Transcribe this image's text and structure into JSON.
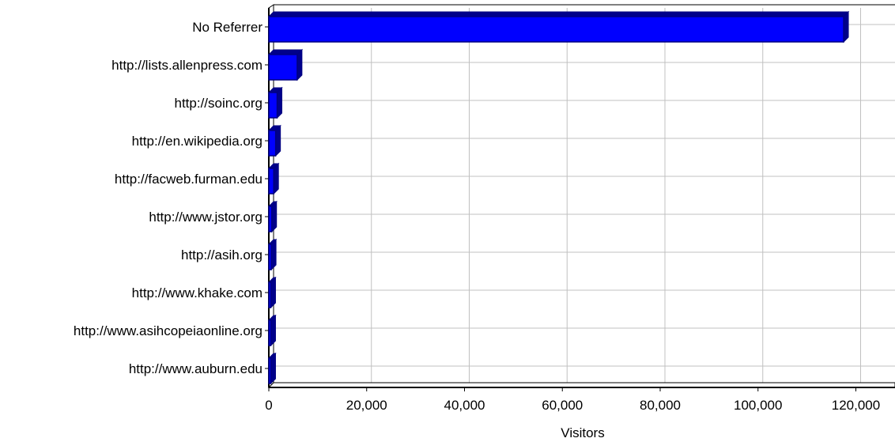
{
  "chart_data": {
    "type": "bar",
    "orientation": "horizontal",
    "title": "",
    "xlabel": "Visitors",
    "ylabel": "",
    "categories": [
      "No Referrer",
      "http://lists.allenpress.com",
      "http://soinc.org",
      "http://en.wikipedia.org",
      "http://facweb.furman.edu",
      "http://www.jstor.org",
      "http://asih.org",
      "http://www.khake.com",
      "http://www.asihcopeiaonline.org",
      "http://www.auburn.edu"
    ],
    "values": [
      117500,
      5800,
      1700,
      1400,
      1000,
      600,
      500,
      400,
      400,
      400
    ],
    "xlim": [
      0,
      128000
    ],
    "xticks": [
      0,
      20000,
      40000,
      60000,
      80000,
      100000,
      120000
    ],
    "xtick_labels": [
      "0",
      "20,000",
      "40,000",
      "60,000",
      "80,000",
      "100,000",
      "120,000"
    ],
    "grid": true,
    "bar_color": "#0000ff",
    "bar_edge_color": "#000080",
    "bar_shadow_color": "#00008b",
    "grid_color": "#c0c0c0",
    "axis_color": "#000000"
  }
}
